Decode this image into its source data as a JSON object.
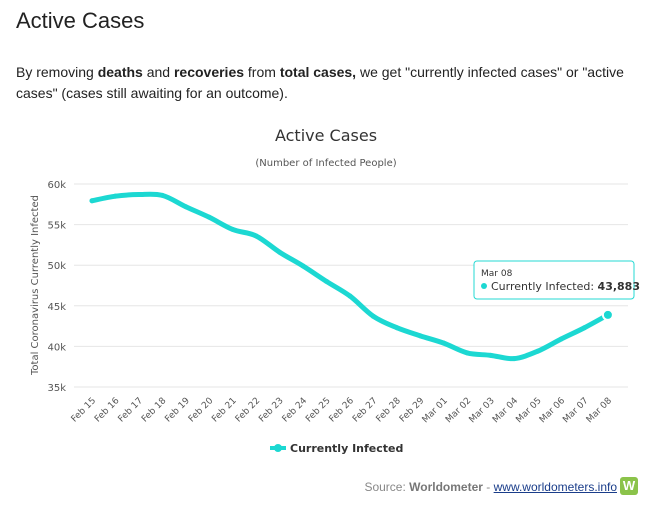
{
  "page": {
    "heading": "Active Cases",
    "intro": {
      "p1": "By removing ",
      "b1": "deaths",
      "p2": " and ",
      "b2": "recoveries",
      "p3": " from ",
      "b3": "total cases,",
      "p4": " we get \"currently infected cases\" or \"active cases\" (cases still awaiting for an outcome)."
    },
    "source": {
      "label": "Source: ",
      "name": "Worldometer",
      "sep": " - ",
      "link": "www.worldometers.info",
      "logo_letter": "W"
    }
  },
  "chart_data": {
    "type": "line",
    "title": "Active Cases",
    "subtitle": "(Number of Infected People)",
    "ylabel": "Total Coronavirus Currently Infected",
    "xlabel": "",
    "ylim": [
      35000,
      60000
    ],
    "yticks": [
      35000,
      40000,
      45000,
      50000,
      55000,
      60000
    ],
    "ytick_labels": [
      "35k",
      "40k",
      "45k",
      "50k",
      "55k",
      "60k"
    ],
    "grid": true,
    "legend_position": "bottom-center",
    "categories": [
      "Feb 15",
      "Feb 16",
      "Feb 17",
      "Feb 18",
      "Feb 19",
      "Feb 20",
      "Feb 21",
      "Feb 22",
      "Feb 23",
      "Feb 24",
      "Feb 25",
      "Feb 26",
      "Feb 27",
      "Feb 28",
      "Feb 29",
      "Mar 01",
      "Mar 02",
      "Mar 03",
      "Mar 04",
      "Mar 05",
      "Mar 06",
      "Mar 07",
      "Mar 08"
    ],
    "series": [
      {
        "name": "Currently Infected",
        "color": "#1cd8d2",
        "values": [
          57934,
          58500,
          58700,
          58600,
          57200,
          55900,
          54400,
          53600,
          51600,
          49900,
          48000,
          46200,
          43700,
          42300,
          41300,
          40400,
          39200,
          38900,
          38500,
          39400,
          40900,
          42300,
          43883
        ]
      }
    ],
    "tooltip": {
      "category": "Mar 08",
      "series_label": "Currently Infected: ",
      "value_text": "43,883"
    }
  }
}
